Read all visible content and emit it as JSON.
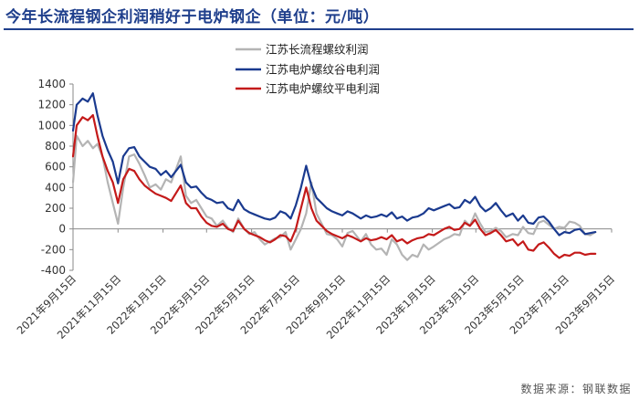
{
  "title": "今年长流程钢企利润稍好于电炉钢企（单位：元/吨）",
  "source": "数据来源：钢联数据",
  "chart_data": {
    "type": "line",
    "ylim": [
      -400,
      1400
    ],
    "yticks": [
      -400,
      -200,
      0,
      200,
      400,
      600,
      800,
      1000,
      1200,
      1400
    ],
    "xlim": [
      "2021-09-15",
      "2023-09-15"
    ],
    "xticks": [
      "2021年9月15日",
      "2021年11月15日",
      "2022年1月15日",
      "2022年3月15日",
      "2022年5月15日",
      "2022年7月15日",
      "2022年9月15日",
      "2022年11月15日",
      "2023年1月15日",
      "2023年3月15日",
      "2023年5月15日",
      "2023年7月15日",
      "2023年9月15日"
    ],
    "xtick_dates": [
      "2021-09-15",
      "2021-11-15",
      "2022-01-15",
      "2022-03-15",
      "2022-05-15",
      "2022-07-15",
      "2022-09-15",
      "2022-11-15",
      "2023-01-15",
      "2023-03-15",
      "2023-05-15",
      "2023-07-15",
      "2023-09-15"
    ],
    "legend_position": "top-right",
    "series": [
      {
        "name": "江苏长流程螺纹利润",
        "color": "#b4b4b4",
        "x": [
          "2021-09-15",
          "2021-09-20",
          "2021-09-28",
          "2021-10-05",
          "2021-10-12",
          "2021-10-18",
          "2021-10-25",
          "2021-11-01",
          "2021-11-08",
          "2021-11-15",
          "2021-11-22",
          "2021-11-30",
          "2021-12-07",
          "2021-12-14",
          "2021-12-21",
          "2021-12-28",
          "2022-01-05",
          "2022-01-12",
          "2022-01-19",
          "2022-01-26",
          "2022-02-08",
          "2022-02-15",
          "2022-02-22",
          "2022-03-01",
          "2022-03-08",
          "2022-03-15",
          "2022-03-22",
          "2022-03-29",
          "2022-04-06",
          "2022-04-13",
          "2022-04-20",
          "2022-04-27",
          "2022-05-05",
          "2022-05-12",
          "2022-05-19",
          "2022-05-26",
          "2022-06-02",
          "2022-06-09",
          "2022-06-16",
          "2022-06-23",
          "2022-06-30",
          "2022-07-07",
          "2022-07-14",
          "2022-07-21",
          "2022-07-28",
          "2022-08-04",
          "2022-08-11",
          "2022-08-18",
          "2022-08-25",
          "2022-09-01",
          "2022-09-08",
          "2022-09-15",
          "2022-09-22",
          "2022-09-29",
          "2022-10-10",
          "2022-10-17",
          "2022-10-24",
          "2022-10-31",
          "2022-11-07",
          "2022-11-14",
          "2022-11-21",
          "2022-11-28",
          "2022-12-05",
          "2022-12-12",
          "2022-12-19",
          "2022-12-26",
          "2023-01-03",
          "2023-01-10",
          "2023-01-17",
          "2023-01-31",
          "2023-02-07",
          "2023-02-14",
          "2023-02-21",
          "2023-02-28",
          "2023-03-07",
          "2023-03-14",
          "2023-03-21",
          "2023-03-28",
          "2023-04-04",
          "2023-04-11",
          "2023-04-18",
          "2023-04-25",
          "2023-05-04",
          "2023-05-11",
          "2023-05-18",
          "2023-05-25",
          "2023-06-01",
          "2023-06-08",
          "2023-06-15",
          "2023-06-22",
          "2023-06-29",
          "2023-07-06",
          "2023-07-13",
          "2023-07-20",
          "2023-07-27",
          "2023-08-03",
          "2023-08-10",
          "2023-08-17",
          "2023-08-24"
        ],
        "values": [
          450,
          900,
          800,
          850,
          780,
          820,
          700,
          450,
          250,
          50,
          400,
          700,
          720,
          630,
          520,
          400,
          430,
          380,
          480,
          450,
          700,
          320,
          250,
          280,
          200,
          120,
          100,
          30,
          80,
          10,
          -30,
          100,
          0,
          -50,
          -30,
          -100,
          -150,
          -120,
          -90,
          -80,
          -30,
          -200,
          -100,
          0,
          150,
          450,
          150,
          50,
          -50,
          -60,
          -100,
          -170,
          -40,
          -20,
          -120,
          -50,
          -150,
          -200,
          -190,
          -250,
          -100,
          -150,
          -250,
          -300,
          -250,
          -270,
          -150,
          -200,
          -170,
          -100,
          -80,
          -50,
          -60,
          80,
          30,
          150,
          50,
          -30,
          -20,
          10,
          -20,
          -80,
          -50,
          -60,
          20,
          -40,
          -50,
          60,
          80,
          40,
          0,
          20,
          10,
          70,
          60,
          30,
          -50,
          -60,
          -30
        ]
      },
      {
        "name": "江苏电炉螺纹谷电利润",
        "color": "#1a3a8f",
        "x": [
          "2021-09-15",
          "2021-09-20",
          "2021-09-28",
          "2021-10-05",
          "2021-10-12",
          "2021-10-18",
          "2021-10-25",
          "2021-11-01",
          "2021-11-08",
          "2021-11-15",
          "2021-11-22",
          "2021-11-30",
          "2021-12-07",
          "2021-12-14",
          "2021-12-21",
          "2021-12-28",
          "2022-01-05",
          "2022-01-12",
          "2022-01-19",
          "2022-01-26",
          "2022-02-08",
          "2022-02-15",
          "2022-02-22",
          "2022-03-01",
          "2022-03-08",
          "2022-03-15",
          "2022-03-22",
          "2022-03-29",
          "2022-04-06",
          "2022-04-13",
          "2022-04-20",
          "2022-04-27",
          "2022-05-05",
          "2022-05-12",
          "2022-05-19",
          "2022-05-26",
          "2022-06-02",
          "2022-06-09",
          "2022-06-16",
          "2022-06-23",
          "2022-06-30",
          "2022-07-07",
          "2022-07-14",
          "2022-07-21",
          "2022-07-28",
          "2022-08-04",
          "2022-08-11",
          "2022-08-18",
          "2022-08-25",
          "2022-09-01",
          "2022-09-08",
          "2022-09-15",
          "2022-09-22",
          "2022-09-29",
          "2022-10-10",
          "2022-10-17",
          "2022-10-24",
          "2022-10-31",
          "2022-11-07",
          "2022-11-14",
          "2022-11-21",
          "2022-11-28",
          "2022-12-05",
          "2022-12-12",
          "2022-12-19",
          "2022-12-26",
          "2023-01-03",
          "2023-01-10",
          "2023-01-17",
          "2023-01-31",
          "2023-02-07",
          "2023-02-14",
          "2023-02-21",
          "2023-02-28",
          "2023-03-07",
          "2023-03-14",
          "2023-03-21",
          "2023-03-28",
          "2023-04-04",
          "2023-04-11",
          "2023-04-18",
          "2023-04-25",
          "2023-05-04",
          "2023-05-11",
          "2023-05-18",
          "2023-05-25",
          "2023-06-01",
          "2023-06-08",
          "2023-06-15",
          "2023-06-22",
          "2023-06-29",
          "2023-07-06",
          "2023-07-13",
          "2023-07-20",
          "2023-07-27",
          "2023-08-03",
          "2023-08-10",
          "2023-08-17",
          "2023-08-24"
        ],
        "values": [
          950,
          1200,
          1260,
          1230,
          1310,
          1100,
          900,
          760,
          650,
          440,
          700,
          780,
          790,
          700,
          650,
          600,
          580,
          520,
          560,
          500,
          620,
          450,
          400,
          410,
          350,
          300,
          280,
          250,
          260,
          200,
          180,
          280,
          190,
          160,
          140,
          120,
          100,
          90,
          110,
          170,
          150,
          100,
          230,
          400,
          610,
          420,
          300,
          250,
          200,
          170,
          150,
          130,
          170,
          150,
          100,
          130,
          110,
          120,
          140,
          120,
          160,
          100,
          120,
          80,
          110,
          120,
          150,
          200,
          180,
          220,
          240,
          200,
          210,
          280,
          250,
          310,
          220,
          170,
          200,
          250,
          180,
          120,
          150,
          80,
          130,
          60,
          50,
          110,
          120,
          70,
          0,
          -60,
          -30,
          -40,
          -10,
          0,
          -50,
          -40,
          -30
        ]
      },
      {
        "name": "江苏电炉螺纹平电利润",
        "color": "#c41a1a",
        "x": [
          "2021-09-15",
          "2021-09-20",
          "2021-09-28",
          "2021-10-05",
          "2021-10-12",
          "2021-10-18",
          "2021-10-25",
          "2021-11-01",
          "2021-11-08",
          "2021-11-15",
          "2021-11-22",
          "2021-11-30",
          "2021-12-07",
          "2021-12-14",
          "2021-12-21",
          "2021-12-28",
          "2022-01-05",
          "2022-01-12",
          "2022-01-19",
          "2022-01-26",
          "2022-02-08",
          "2022-02-15",
          "2022-02-22",
          "2022-03-01",
          "2022-03-08",
          "2022-03-15",
          "2022-03-22",
          "2022-03-29",
          "2022-04-06",
          "2022-04-13",
          "2022-04-20",
          "2022-04-27",
          "2022-05-05",
          "2022-05-12",
          "2022-05-19",
          "2022-05-26",
          "2022-06-02",
          "2022-06-09",
          "2022-06-16",
          "2022-06-23",
          "2022-06-30",
          "2022-07-07",
          "2022-07-14",
          "2022-07-21",
          "2022-07-28",
          "2022-08-04",
          "2022-08-11",
          "2022-08-18",
          "2022-08-25",
          "2022-09-01",
          "2022-09-08",
          "2022-09-15",
          "2022-09-22",
          "2022-09-29",
          "2022-10-10",
          "2022-10-17",
          "2022-10-24",
          "2022-10-31",
          "2022-11-07",
          "2022-11-14",
          "2022-11-21",
          "2022-11-28",
          "2022-12-05",
          "2022-12-12",
          "2022-12-19",
          "2022-12-26",
          "2023-01-03",
          "2023-01-10",
          "2023-01-17",
          "2023-01-31",
          "2023-02-07",
          "2023-02-14",
          "2023-02-21",
          "2023-02-28",
          "2023-03-07",
          "2023-03-14",
          "2023-03-21",
          "2023-03-28",
          "2023-04-04",
          "2023-04-11",
          "2023-04-18",
          "2023-04-25",
          "2023-05-04",
          "2023-05-11",
          "2023-05-18",
          "2023-05-25",
          "2023-06-01",
          "2023-06-08",
          "2023-06-15",
          "2023-06-22",
          "2023-06-29",
          "2023-07-06",
          "2023-07-13",
          "2023-07-20",
          "2023-07-27",
          "2023-08-03",
          "2023-08-10",
          "2023-08-17",
          "2023-08-24"
        ],
        "values": [
          700,
          1000,
          1080,
          1050,
          1100,
          900,
          700,
          560,
          450,
          250,
          480,
          580,
          560,
          480,
          420,
          380,
          340,
          320,
          300,
          270,
          420,
          250,
          200,
          200,
          120,
          60,
          30,
          20,
          50,
          0,
          -20,
          80,
          0,
          -40,
          -60,
          -80,
          -110,
          -130,
          -100,
          -60,
          -70,
          -120,
          0,
          200,
          400,
          200,
          80,
          30,
          -20,
          -50,
          -70,
          -90,
          -60,
          -80,
          -120,
          -90,
          -110,
          -100,
          -80,
          -100,
          -60,
          -120,
          -100,
          -140,
          -110,
          -90,
          -80,
          -50,
          -60,
          0,
          20,
          -10,
          0,
          60,
          30,
          90,
          0,
          -60,
          -40,
          -10,
          -60,
          -120,
          -100,
          -160,
          -120,
          -200,
          -210,
          -150,
          -130,
          -180,
          -240,
          -280,
          -250,
          -260,
          -230,
          -230,
          -250,
          -240,
          -240
        ]
      }
    ]
  }
}
